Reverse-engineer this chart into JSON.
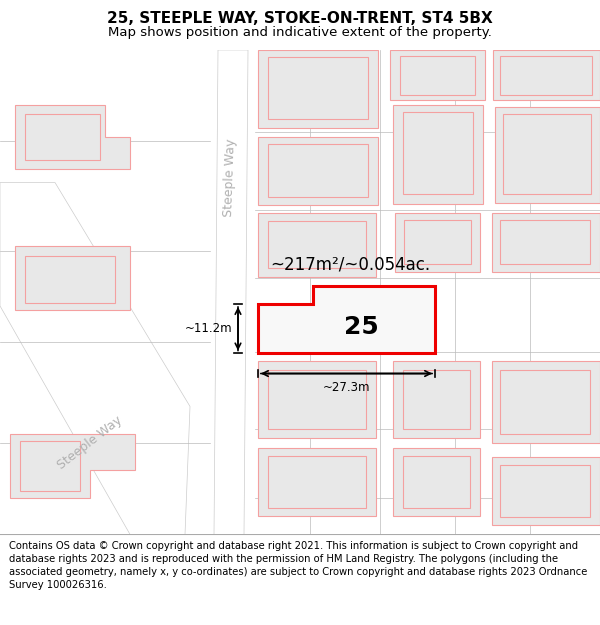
{
  "title": "25, STEEPLE WAY, STOKE-ON-TRENT, ST4 5BX",
  "subtitle": "Map shows position and indicative extent of the property.",
  "footer": "Contains OS data © Crown copyright and database right 2021. This information is subject to Crown copyright and database rights 2023 and is reproduced with the permission of HM Land Registry. The polygons (including the associated geometry, namely x, y co-ordinates) are subject to Crown copyright and database rights 2023 Ordnance Survey 100026316.",
  "area_label": "~217m²/~0.054ac.",
  "number_label": "25",
  "dim_width": "~27.3m",
  "dim_height": "~11.2m",
  "street_label_v": "Steeple Way",
  "street_label_d": "Steeple Way",
  "building_fill": "#e8e8e8",
  "building_edge": "#f4a0a0",
  "highlight_fill": "#f8f8f8",
  "highlight_edge": "#ee0000",
  "title_fontsize": 11,
  "subtitle_fontsize": 9.5,
  "footer_fontsize": 7.2,
  "map_bg": "#ffffff"
}
